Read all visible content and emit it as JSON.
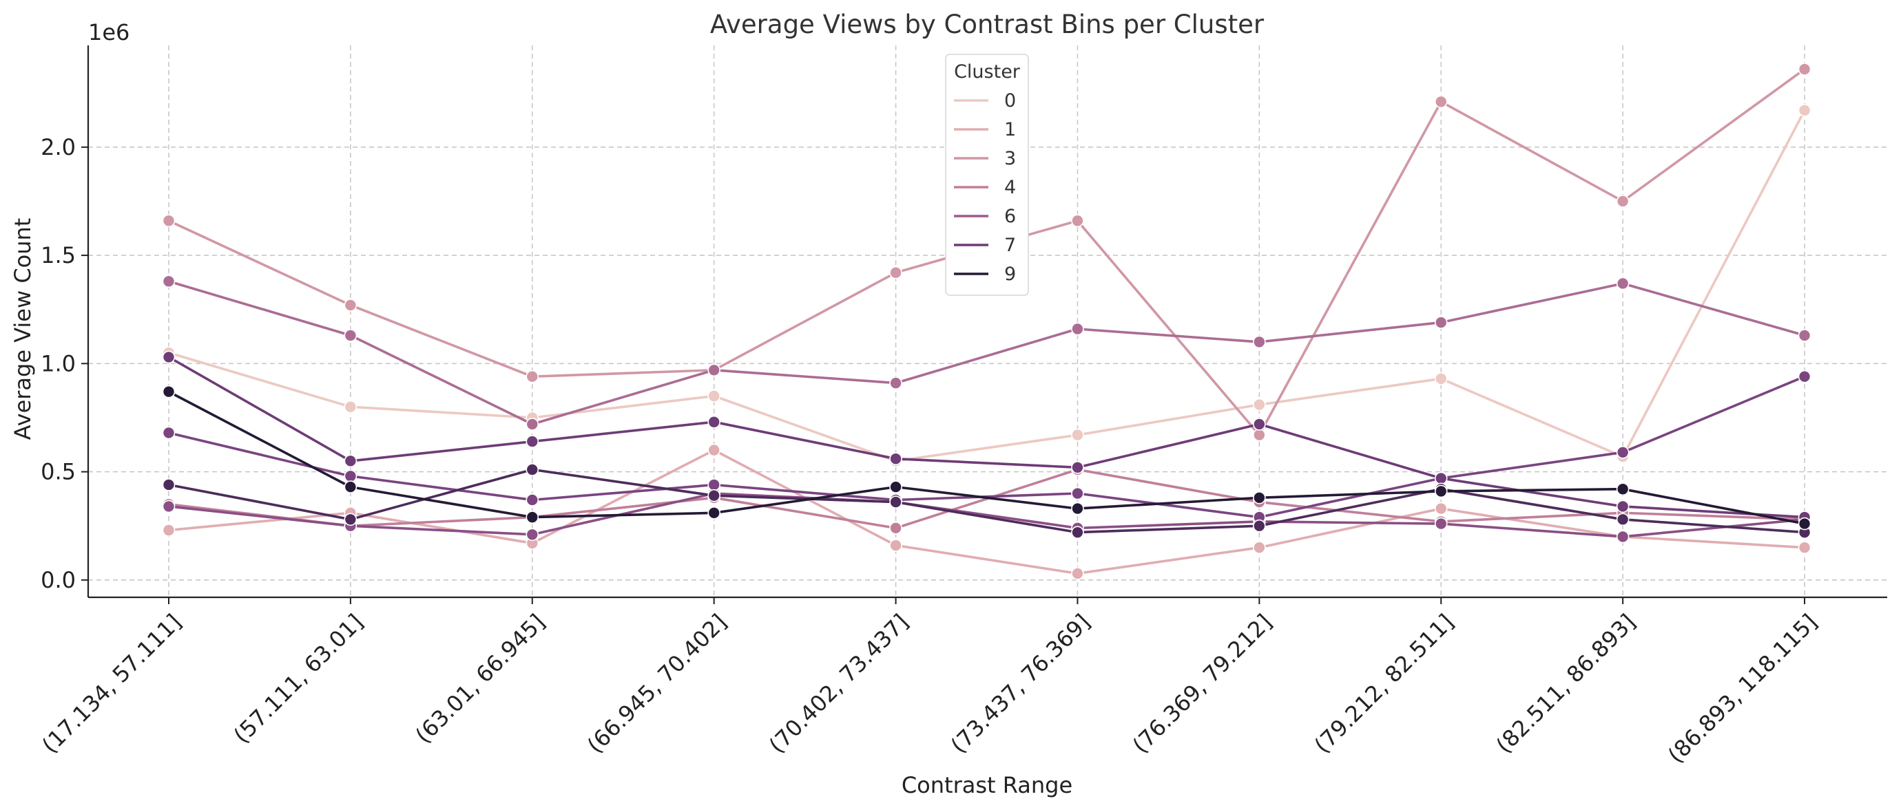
{
  "chart_data": {
    "type": "line",
    "title": "Average Views by Contrast Bins per Cluster",
    "xlabel": "Contrast Range",
    "ylabel": "Average View Count",
    "y_multiplier": "1e6",
    "ylim": [
      -0.08,
      2.47
    ],
    "y_ticks": [
      0.0,
      0.5,
      1.0,
      1.5,
      2.0
    ],
    "y_tick_labels": [
      "0.0",
      "0.5",
      "1.0",
      "1.5",
      "2.0"
    ],
    "grid": true,
    "legend": {
      "title": "Cluster",
      "placement": "upper-center"
    },
    "categories": [
      "(17.134, 57.111]",
      "(57.111, 63.01]",
      "(63.01, 66.945]",
      "(66.945, 70.402]",
      "(70.402, 73.437]",
      "(73.437, 76.369]",
      "(76.369, 79.212]",
      "(79.212, 82.511]",
      "(82.511, 86.893]",
      "(86.893, 118.115]"
    ],
    "series": [
      {
        "name": "0",
        "color": "#ecc9c2",
        "values": [
          1.05,
          0.8,
          0.75,
          0.85,
          0.55,
          0.67,
          0.81,
          0.93,
          0.57,
          2.17
        ]
      },
      {
        "name": "1",
        "color": "#e0adb1",
        "values": [
          0.23,
          0.31,
          0.17,
          0.6,
          0.16,
          0.03,
          0.15,
          0.33,
          0.2,
          0.15
        ]
      },
      {
        "name": "3",
        "color": "#d197a4",
        "values": [
          1.66,
          1.27,
          0.94,
          0.97,
          1.42,
          1.66,
          0.67,
          2.21,
          1.75,
          2.36
        ]
      },
      {
        "name": "4",
        "color": "#c07f99",
        "values": [
          0.35,
          0.25,
          0.29,
          0.38,
          0.24,
          0.51,
          0.36,
          0.27,
          0.31,
          0.28
        ]
      },
      {
        "name": "6",
        "color": "#ab6c93",
        "values": [
          1.38,
          1.13,
          0.72,
          0.97,
          0.91,
          1.16,
          1.1,
          1.19,
          1.37,
          1.13
        ]
      },
      {
        "name": "7",
        "color": "#8a4f85",
        "values": [
          0.34,
          0.25,
          0.21,
          0.4,
          0.36,
          0.24,
          0.27,
          0.26,
          0.2,
          0.28
        ]
      },
      {
        "name": "7",
        "color": "#7a4480",
        "values": [
          0.68,
          0.48,
          0.37,
          0.44,
          0.37,
          0.4,
          0.29,
          0.47,
          0.59,
          0.94
        ]
      },
      {
        "name": "7",
        "color": "#6e3c76",
        "values": [
          1.03,
          0.55,
          0.64,
          0.73,
          0.56,
          0.52,
          0.72,
          0.47,
          0.34,
          0.29
        ]
      },
      {
        "name": "7",
        "color": "#4d2c5b",
        "values": [
          0.44,
          0.28,
          0.51,
          0.39,
          0.36,
          0.22,
          0.25,
          0.42,
          0.28,
          0.22
        ]
      },
      {
        "name": "9",
        "color": "#251a35",
        "values": [
          0.87,
          0.43,
          0.29,
          0.31,
          0.43,
          0.33,
          0.38,
          0.41,
          0.42,
          0.26
        ]
      }
    ],
    "legend_entries": [
      {
        "label": "0",
        "color": "#ecc9c2"
      },
      {
        "label": "1",
        "color": "#e0adb1"
      },
      {
        "label": "3",
        "color": "#d197a4"
      },
      {
        "label": "4",
        "color": "#c07f99"
      },
      {
        "label": "6",
        "color": "#9c5b8c"
      },
      {
        "label": "7",
        "color": "#6e3c76"
      },
      {
        "label": "9",
        "color": "#251a35"
      }
    ]
  }
}
